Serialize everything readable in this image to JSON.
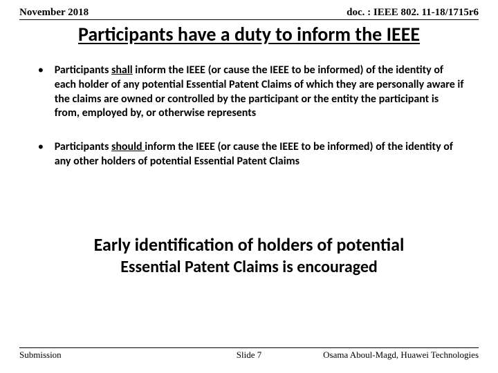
{
  "header": {
    "date": "November 2018",
    "docnum": "doc. : IEEE 802. 11-18/1715r6"
  },
  "title": "Participants have a duty to inform the IEEE",
  "bullets": [
    {
      "prefix": "Participants ",
      "underlined": "shall",
      "suffix": " inform the IEEE (or cause the IEEE to be informed) of the identity of each holder of any potential Essential Patent Claims of which they are personally aware if the claims are owned or controlled by the participant or the entity the participant is from, employed by, or otherwise represents"
    },
    {
      "prefix": "Participants ",
      "underlined": "should ",
      "suffix": "inform the IEEE (or cause the IEEE to be informed) of the identity of any other holders of potential Essential Patent Claims"
    }
  ],
  "closing": {
    "line1": "Early identification of holders of potential",
    "line2": "Essential Patent Claims is encouraged"
  },
  "footer": {
    "left": "Submission",
    "center": "Slide 7",
    "right": "Osama Aboul-Magd, Huawei Technologies"
  }
}
